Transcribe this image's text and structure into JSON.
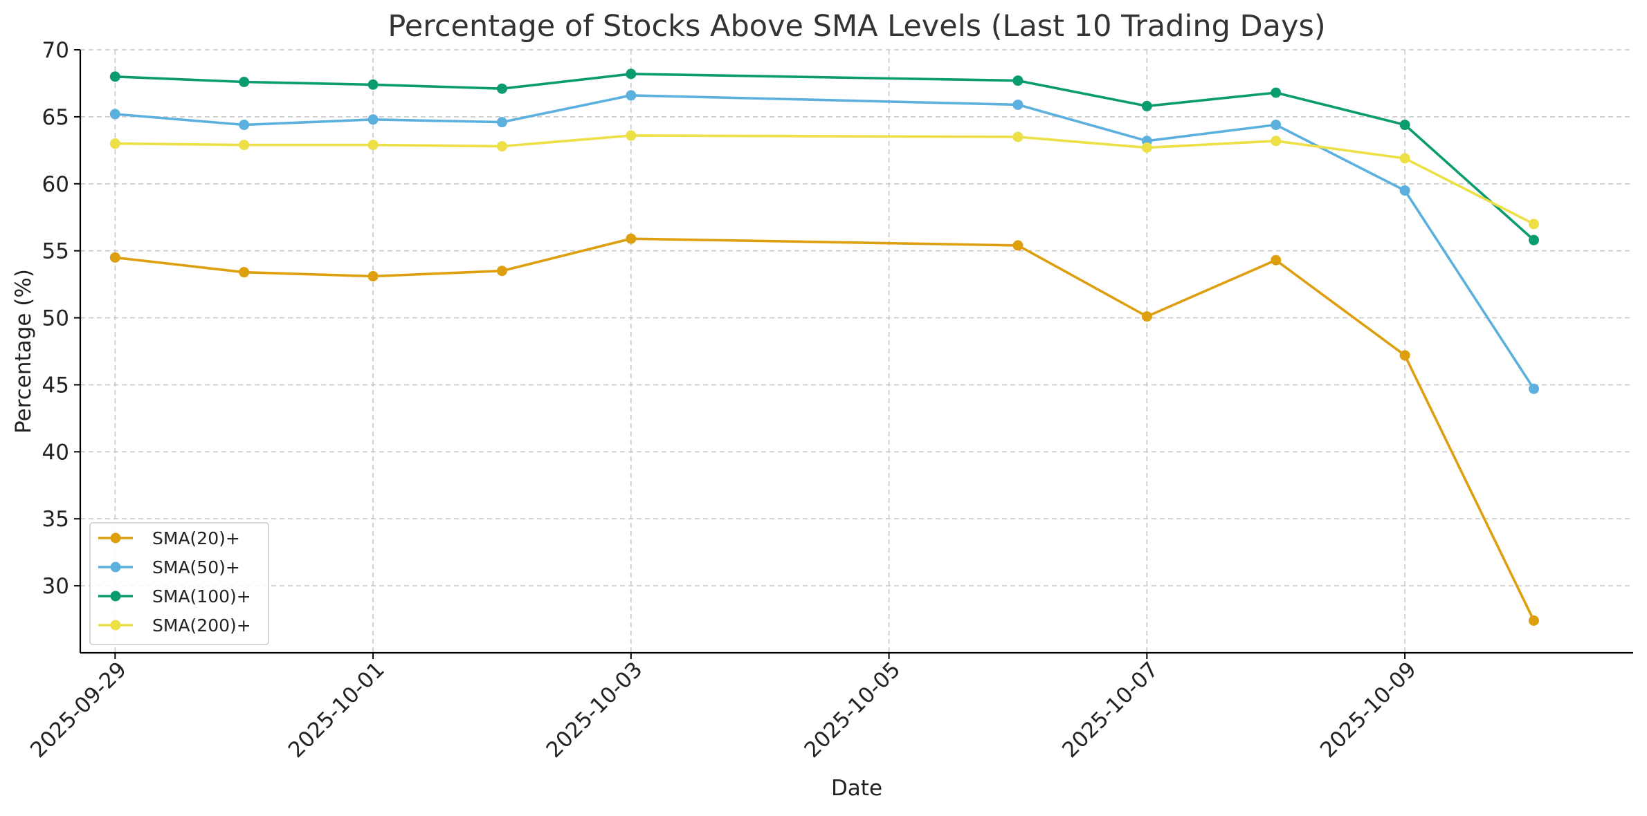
{
  "chart_data": {
    "type": "line",
    "title": "Percentage of Stocks Above SMA Levels (Last 10 Trading Days)",
    "xlabel": "Date",
    "ylabel": "Percentage (%)",
    "x": [
      "2025-09-29",
      "2025-09-30",
      "2025-10-01",
      "2025-10-02",
      "2025-10-03",
      "2025-10-06",
      "2025-10-07",
      "2025-10-08",
      "2025-10-09",
      "2025-10-10"
    ],
    "x_ticks": [
      "2025-09-29",
      "2025-10-01",
      "2025-10-03",
      "2025-10-05",
      "2025-10-07",
      "2025-10-09"
    ],
    "xlim": [
      "2025-09-28.73",
      "2025-10-10.77"
    ],
    "ylim": [
      25,
      70
    ],
    "y_ticks": [
      30,
      35,
      40,
      45,
      50,
      55,
      60,
      65,
      70
    ],
    "grid": true,
    "legend_position": "bottom-left",
    "series": [
      {
        "name": "SMA(20)+",
        "color": "#DE9F0E",
        "values": [
          54.5,
          53.4,
          53.1,
          53.5,
          55.9,
          55.4,
          50.1,
          54.3,
          47.2,
          27.4
        ]
      },
      {
        "name": "SMA(50)+",
        "color": "#5BB0DE",
        "values": [
          65.2,
          64.4,
          64.8,
          64.6,
          66.6,
          65.9,
          63.2,
          64.4,
          59.5,
          44.7
        ]
      },
      {
        "name": "SMA(100)+",
        "color": "#0A9B6E",
        "values": [
          68.0,
          67.6,
          67.4,
          67.1,
          68.2,
          67.7,
          65.8,
          66.8,
          64.4,
          55.8
        ]
      },
      {
        "name": "SMA(200)+",
        "color": "#EDE047",
        "values": [
          63.0,
          62.9,
          62.9,
          62.8,
          63.6,
          63.5,
          62.7,
          63.2,
          61.9,
          57.0
        ]
      }
    ]
  }
}
